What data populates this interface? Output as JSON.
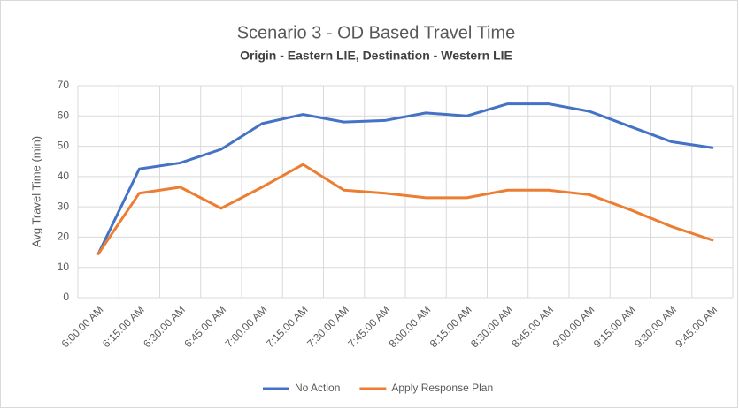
{
  "chart_data": {
    "type": "line",
    "title": "Scenario 3 - OD Based Travel Time",
    "subtitle": "Origin - Eastern LIE, Destination - Western LIE",
    "y_label": "Avg Travel Time (min)",
    "categories": [
      "6:00:00 AM",
      "6:15:00 AM",
      "6:30:00 AM",
      "6:45:00 AM",
      "7:00:00 AM",
      "7:15:00 AM",
      "7:30:00 AM",
      "7:45:00 AM",
      "8:00:00 AM",
      "8:15:00 AM",
      "8:30:00 AM",
      "8:45:00 AM",
      "9:00:00 AM",
      "9:15:00 AM",
      "9:30:00 AM",
      "9:45:00 AM"
    ],
    "series": [
      {
        "name": "No Action",
        "color": "#4472c4",
        "values": [
          14.5,
          42.5,
          44.5,
          49,
          57.5,
          60.5,
          58,
          58.5,
          61,
          60,
          64,
          64,
          61.5,
          56.5,
          51.5,
          49.5
        ]
      },
      {
        "name": "Apply Response Plan",
        "color": "#ed7d31",
        "values": [
          14.5,
          34.5,
          36.5,
          29.5,
          36.5,
          44,
          35.5,
          34.5,
          33,
          33,
          35.5,
          35.5,
          34,
          29,
          23.5,
          19
        ]
      }
    ],
    "ylim": [
      0,
      70
    ],
    "yticks": [
      0,
      10,
      20,
      30,
      40,
      50,
      60,
      70
    ],
    "grid": true,
    "legend": "bottom"
  }
}
